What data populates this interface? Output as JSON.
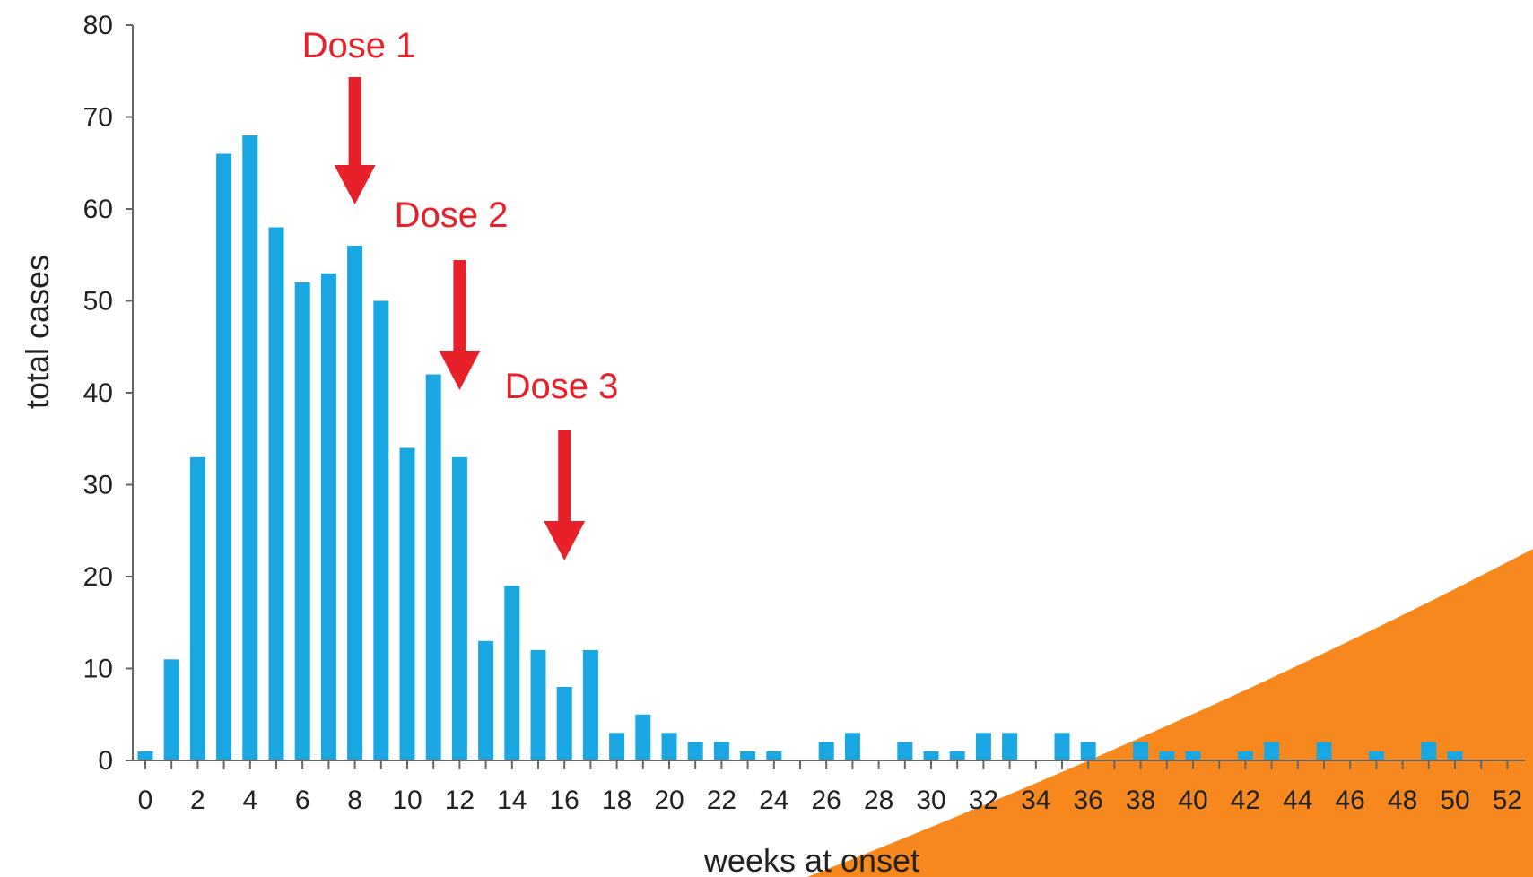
{
  "chart_data": {
    "type": "bar",
    "title": "",
    "xlabel": "weeks  at onset",
    "ylabel": "total cases",
    "x": [
      0,
      1,
      2,
      3,
      4,
      5,
      6,
      7,
      8,
      9,
      10,
      11,
      12,
      13,
      14,
      15,
      16,
      17,
      18,
      19,
      20,
      21,
      22,
      23,
      24,
      25,
      26,
      27,
      28,
      29,
      30,
      31,
      32,
      33,
      34,
      35,
      36,
      37,
      38,
      39,
      40,
      41,
      42,
      43,
      44,
      45,
      46,
      47,
      48,
      49,
      50,
      51,
      52
    ],
    "values": [
      1,
      11,
      33,
      66,
      68,
      58,
      52,
      53,
      56,
      50,
      34,
      42,
      33,
      13,
      19,
      12,
      8,
      12,
      3,
      5,
      3,
      2,
      2,
      1,
      1,
      0,
      2,
      3,
      0,
      2,
      1,
      1,
      3,
      3,
      0,
      3,
      2,
      0,
      2,
      1,
      1,
      0,
      1,
      2,
      0,
      2,
      0,
      1,
      0,
      2,
      1,
      0,
      0
    ],
    "xticks": [
      "0",
      "2",
      "4",
      "6",
      "8",
      "10",
      "12",
      "14",
      "16",
      "18",
      "20",
      "22",
      "24",
      "26",
      "28",
      "30",
      "32",
      "34",
      "36",
      "38",
      "40",
      "42",
      "44",
      "46",
      "48",
      "50",
      "52"
    ],
    "yticks": [
      "0",
      "10",
      "20",
      "30",
      "40",
      "50",
      "60",
      "70",
      "80"
    ],
    "ylim": [
      0,
      80
    ],
    "xlim": [
      0,
      52
    ],
    "grid": false,
    "bar_color": "#1aa7e1",
    "annotations": [
      {
        "text": "Dose 1",
        "x": 8,
        "color": "#e8202a"
      },
      {
        "text": "Dose 2",
        "x": 12,
        "color": "#e8202a"
      },
      {
        "text": "Dose  3",
        "x": 16,
        "color": "#e8202a"
      }
    ],
    "decoration_color": "#f7881e"
  }
}
